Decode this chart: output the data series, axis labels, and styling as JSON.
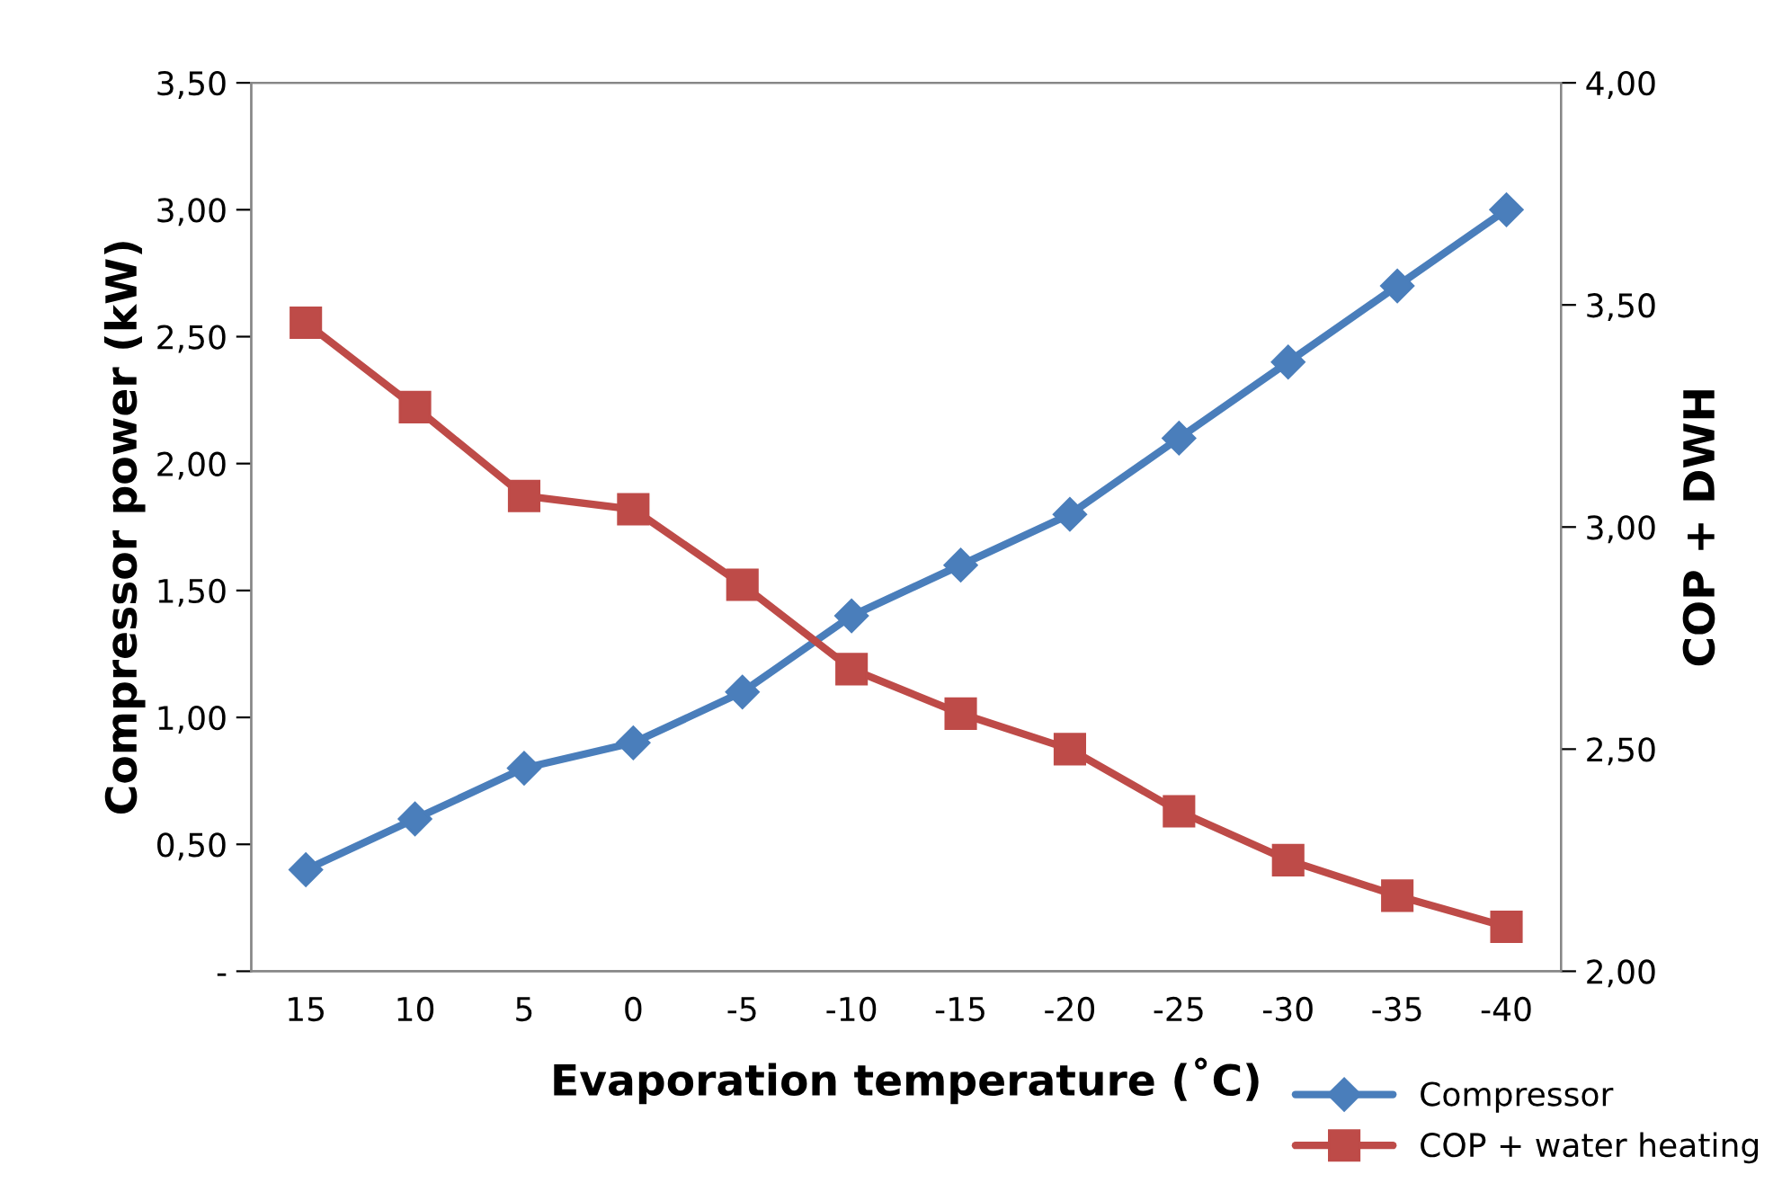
{
  "chart_data": {
    "type": "line",
    "xlabel": "Evaporation temperature (˚C)",
    "ylabel": "Compressor power (kW)",
    "y2label": "COP + DWH",
    "categories": [
      "15",
      "10",
      "5",
      "0",
      "-5",
      "-10",
      "-15",
      "-20",
      "-25",
      "-30",
      "-35",
      "-40"
    ],
    "series": [
      {
        "name": "Compressor",
        "color": "#4a7ebb",
        "marker": "diamond",
        "values": [
          0.4,
          0.6,
          0.8,
          0.9,
          1.1,
          1.4,
          1.6,
          1.8,
          2.1,
          2.4,
          2.7,
          3.0
        ]
      },
      {
        "name": "COP + water heating",
        "color": "#be4b48",
        "marker": "square",
        "axis": "y2",
        "values": [
          3.46,
          3.27,
          3.07,
          3.04,
          2.87,
          2.68,
          2.58,
          2.5,
          2.36,
          2.25,
          2.17,
          2.1
        ]
      }
    ],
    "ylim": [
      0,
      3.5
    ],
    "yticks": [
      {
        "value": 0,
        "label": "-"
      },
      {
        "value": 0.5,
        "label": "0,50"
      },
      {
        "value": 1.0,
        "label": "1,00"
      },
      {
        "value": 1.5,
        "label": "1,50"
      },
      {
        "value": 2.0,
        "label": "2,00"
      },
      {
        "value": 2.5,
        "label": "2,50"
      },
      {
        "value": 3.0,
        "label": "3,00"
      },
      {
        "value": 3.5,
        "label": "3,50"
      }
    ],
    "y2lim": [
      2.0,
      4.0
    ],
    "y2ticks": [
      {
        "value": 2.0,
        "label": "2,00"
      },
      {
        "value": 2.5,
        "label": "2,50"
      },
      {
        "value": 3.0,
        "label": "3,00"
      },
      {
        "value": 3.5,
        "label": "3,50"
      },
      {
        "value": 4.0,
        "label": "4,00"
      }
    ],
    "grid": false,
    "legend": "bottom right",
    "line_style": "solid"
  }
}
